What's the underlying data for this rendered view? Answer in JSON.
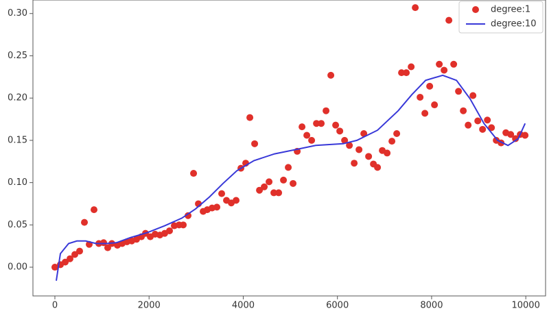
{
  "chart_data": {
    "type": "scatter",
    "xlim": [
      -466,
      10420
    ],
    "ylim": [
      -0.034,
      0.316
    ],
    "xticks": [
      0,
      2000,
      4000,
      6000,
      8000,
      10000
    ],
    "yticks": [
      {
        "value": 0,
        "label": "0.00"
      },
      {
        "value": 0.05,
        "label": "0.05"
      },
      {
        "value": 0.1,
        "label": "0.10"
      },
      {
        "value": 0.15,
        "label": "0.15"
      },
      {
        "value": 0.2,
        "label": "0.20"
      },
      {
        "value": 0.25,
        "label": "0.25"
      },
      {
        "value": 0.3,
        "label": "0.30"
      }
    ],
    "legend": "upper right",
    "series": [
      {
        "name": "degree:1",
        "style": "markers",
        "color": "#e0302a",
        "x": [
          0,
          117,
          219,
          321,
          423,
          525,
          627,
          729,
          831,
          933,
          1035,
          1122,
          1210,
          1327,
          1429,
          1531,
          1633,
          1735,
          1837,
          1924,
          2026,
          2128,
          2230,
          2332,
          2434,
          2536,
          2638,
          2726,
          2828,
          2945,
          3047,
          3149,
          3236,
          3338,
          3440,
          3542,
          3644,
          3746,
          3848,
          3950,
          4052,
          4140,
          4242,
          4344,
          4446,
          4548,
          4650,
          4752,
          4854,
          4956,
          5058,
          5146,
          5248,
          5350,
          5452,
          5554,
          5656,
          5758,
          5860,
          5962,
          6050,
          6152,
          6254,
          6356,
          6458,
          6560,
          6662,
          6764,
          6851,
          6953,
          7055,
          7157,
          7259,
          7361,
          7463,
          7566,
          7653,
          7755,
          7857,
          7959,
          8061,
          8163,
          8265,
          8367,
          8469,
          8571,
          8673,
          8776,
          8878,
          8980,
          9082,
          9184,
          9271,
          9373,
          9475,
          9577,
          9679,
          9781,
          9883,
          9985
        ],
        "values": [
          0,
          0.003,
          0.006,
          0.01,
          0.015,
          0.019,
          0.053,
          0.027,
          0.068,
          0.028,
          0.029,
          0.023,
          0.028,
          0.026,
          0.028,
          0.03,
          0.031,
          0.033,
          0.036,
          0.04,
          0.036,
          0.039,
          0.038,
          0.04,
          0.043,
          0.049,
          0.05,
          0.05,
          0.061,
          0.111,
          0.075,
          0.066,
          0.068,
          0.07,
          0.071,
          0.087,
          0.079,
          0.076,
          0.079,
          0.117,
          0.123,
          0.177,
          0.146,
          0.091,
          0.095,
          0.101,
          0.088,
          0.088,
          0.103,
          0.118,
          0.099,
          0.137,
          0.166,
          0.156,
          0.15,
          0.17,
          0.17,
          0.185,
          0.227,
          0.168,
          0.161,
          0.15,
          0.144,
          0.123,
          0.139,
          0.158,
          0.131,
          0.122,
          0.118,
          0.138,
          0.135,
          0.149,
          0.158,
          0.23,
          0.23,
          0.237,
          0.307,
          0.201,
          0.182,
          0.214,
          0.192,
          0.24,
          0.233,
          0.292,
          0.24,
          0.208,
          0.185,
          0.168,
          0.203,
          0.173,
          0.163,
          0.174,
          0.165,
          0.15,
          0.147,
          0.159,
          0.157,
          0.152,
          0.157,
          0.156
        ]
      },
      {
        "name": "degree:10",
        "style": "line",
        "color": "#3838d8",
        "x": [
          29,
          117,
          292,
          466,
          656,
          875,
          1093,
          1312,
          1603,
          1968,
          2332,
          2697,
          2988,
          3280,
          3571,
          3863,
          4227,
          4665,
          5102,
          5539,
          6122,
          6414,
          6851,
          7289,
          7580,
          7872,
          8236,
          8528,
          8819,
          9111,
          9402,
          9621,
          9840,
          9985
        ],
        "values": [
          -0.016,
          0.016,
          0.028,
          0.031,
          0.031,
          0.028,
          0.028,
          0.029,
          0.035,
          0.041,
          0.049,
          0.058,
          0.069,
          0.083,
          0.099,
          0.114,
          0.126,
          0.134,
          0.139,
          0.144,
          0.146,
          0.15,
          0.162,
          0.185,
          0.204,
          0.221,
          0.227,
          0.221,
          0.199,
          0.17,
          0.15,
          0.144,
          0.152,
          0.17
        ]
      }
    ]
  }
}
